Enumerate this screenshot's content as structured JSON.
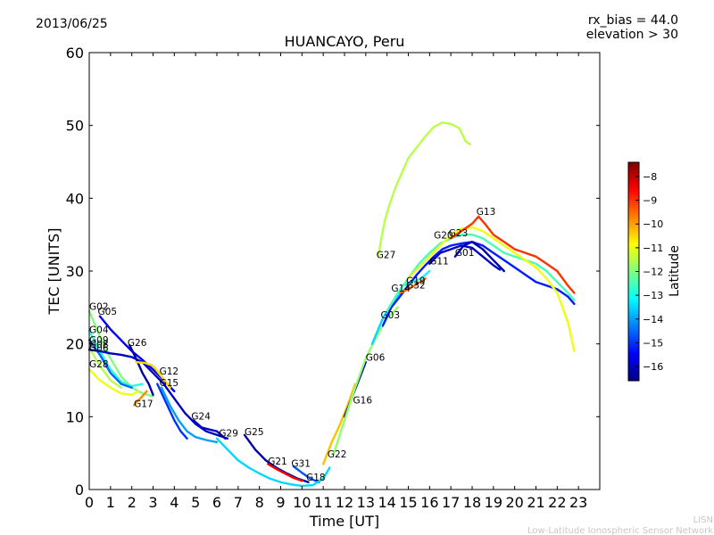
{
  "header": {
    "date": "2013/06/25",
    "rx_bias": "rx_bias = 44.0",
    "elevation": "elevation > 30"
  },
  "footer": {
    "line1": "LISN",
    "line2": "Low-Latitude Ionospheric Sensor Network"
  },
  "colorbar": {
    "label": "Latitude",
    "ticks": [
      "−8",
      "−9",
      "−10",
      "−11",
      "−12",
      "−13",
      "−14",
      "−15",
      "−16"
    ],
    "range": [
      -16.6,
      -7.4
    ],
    "colors": [
      "#00007f",
      "#0000ff",
      "#007fff",
      "#00ffff",
      "#7fff7f",
      "#ffff00",
      "#ff7f00",
      "#ff0000",
      "#7f0000"
    ]
  },
  "chart_data": {
    "type": "line",
    "title": "HUANCAYO, Peru",
    "xlabel": "Time [UT]",
    "ylabel": "TEC [UNITS]",
    "xlim": [
      0,
      24
    ],
    "ylim": [
      0,
      60
    ],
    "xticks": [
      "0",
      "1",
      "2",
      "3",
      "4",
      "5",
      "6",
      "7",
      "8",
      "9",
      "10",
      "11",
      "12",
      "13",
      "14",
      "15",
      "16",
      "17",
      "18",
      "19",
      "20",
      "21",
      "22",
      "23"
    ],
    "yticks": [
      "0",
      "10",
      "20",
      "30",
      "40",
      "50",
      "60"
    ],
    "grid": false,
    "series": [
      {
        "name": "G02",
        "lat": -12.0,
        "label_at": [
          0.0,
          24.7
        ],
        "points": [
          [
            0.0,
            24.5
          ],
          [
            0.5,
            21.0
          ],
          [
            1.0,
            18.0
          ],
          [
            1.5,
            15.5
          ],
          [
            2.0,
            14.0
          ],
          [
            2.5,
            13.2
          ],
          [
            3.0,
            12.8
          ]
        ]
      },
      {
        "name": "G05",
        "lat": -15.5,
        "label_at": [
          0.4,
          24.0
        ],
        "points": [
          [
            0.5,
            23.8
          ],
          [
            1.0,
            22.0
          ],
          [
            1.5,
            20.5
          ],
          [
            2.0,
            19.0
          ],
          [
            2.5,
            17.8
          ],
          [
            3.0,
            16.5
          ],
          [
            3.5,
            15.0
          ],
          [
            4.0,
            13.5
          ]
        ]
      },
      {
        "name": "G04",
        "lat": -12.8,
        "label_at": [
          0.0,
          21.5
        ],
        "points": [
          [
            0.0,
            21.8
          ],
          [
            0.5,
            19.0
          ],
          [
            1.0,
            16.5
          ],
          [
            1.5,
            14.8
          ],
          [
            2.0,
            14.2
          ],
          [
            2.5,
            14.5
          ]
        ]
      },
      {
        "name": "G09",
        "lat": -14.5,
        "label_at": [
          0.0,
          20.1
        ],
        "points": [
          [
            0.0,
            20.5
          ],
          [
            0.5,
            18.5
          ],
          [
            1.0,
            16.0
          ],
          [
            1.5,
            14.5
          ],
          [
            2.0,
            14.0
          ]
        ]
      },
      {
        "name": "G08",
        "lat": -11.5,
        "label_at": [
          0.0,
          19.5
        ],
        "points": [
          [
            0.0,
            19.5
          ],
          [
            0.5,
            17.0
          ],
          [
            1.0,
            15.0
          ],
          [
            1.5,
            14.0
          ]
        ]
      },
      {
        "name": "G06",
        "lat": -16.0,
        "label_at": [
          0.0,
          19.0
        ],
        "points": [
          [
            0.0,
            19.2
          ],
          [
            0.5,
            19.0
          ],
          [
            1.0,
            18.7
          ],
          [
            1.5,
            18.5
          ],
          [
            2.0,
            18.2
          ],
          [
            2.5,
            17.5
          ],
          [
            3.0,
            16.0
          ],
          [
            3.5,
            14.5
          ],
          [
            4.0,
            12.5
          ],
          [
            4.5,
            10.5
          ],
          [
            5.0,
            9.0
          ],
          [
            5.5,
            8.0
          ],
          [
            6.0,
            7.5
          ],
          [
            6.5,
            7.0
          ]
        ]
      },
      {
        "name": "G28",
        "lat": -11.0,
        "label_at": [
          0.0,
          16.8
        ],
        "points": [
          [
            0.0,
            16.5
          ],
          [
            0.5,
            15.0
          ],
          [
            1.0,
            14.0
          ],
          [
            1.5,
            13.2
          ],
          [
            2.0,
            13.0
          ],
          [
            2.3,
            13.5
          ]
        ]
      },
      {
        "name": "G26",
        "lat": -16.3,
        "label_at": [
          1.8,
          19.7
        ],
        "points": [
          [
            1.9,
            19.8
          ],
          [
            2.2,
            18.0
          ],
          [
            2.5,
            16.0
          ],
          [
            2.8,
            14.5
          ],
          [
            3.0,
            13.0
          ]
        ]
      },
      {
        "name": "G12",
        "lat": -10.5,
        "label_at": [
          3.3,
          15.8
        ],
        "points": [
          [
            2.2,
            17.5
          ],
          [
            2.6,
            17.4
          ],
          [
            3.0,
            17.0
          ],
          [
            3.4,
            15.5
          ],
          [
            3.8,
            14.0
          ]
        ]
      },
      {
        "name": "G15",
        "lat": -14.0,
        "label_at": [
          3.3,
          14.2
        ],
        "points": [
          [
            3.4,
            14.0
          ],
          [
            3.8,
            11.5
          ],
          [
            4.2,
            9.5
          ],
          [
            4.6,
            8.0
          ],
          [
            5.0,
            7.2
          ],
          [
            5.5,
            6.8
          ],
          [
            6.0,
            6.5
          ]
        ]
      },
      {
        "name": "G17",
        "lat": -9.8,
        "label_at": [
          2.1,
          11.3
        ],
        "points": [
          [
            2.1,
            11.6
          ],
          [
            2.4,
            12.5
          ],
          [
            2.7,
            13.5
          ]
        ]
      },
      {
        "name": "G24",
        "lat": -15.0,
        "label_at": [
          4.8,
          9.6
        ],
        "points": [
          [
            3.2,
            14.5
          ],
          [
            3.6,
            12.0
          ],
          [
            4.0,
            9.5
          ],
          [
            4.3,
            8.0
          ],
          [
            4.6,
            7.0
          ]
        ]
      },
      {
        "name": "G29",
        "lat": -16.0,
        "label_at": [
          6.1,
          7.3
        ],
        "points": [
          [
            4.9,
            9.5
          ],
          [
            5.3,
            8.5
          ],
          [
            5.7,
            8.2
          ],
          [
            6.0,
            8.0
          ],
          [
            6.4,
            7.0
          ]
        ]
      },
      {
        "name": "G25",
        "lat": -16.2,
        "label_at": [
          7.3,
          7.5
        ],
        "points": [
          [
            7.3,
            7.5
          ],
          [
            7.8,
            5.5
          ],
          [
            8.3,
            4.0
          ],
          [
            8.8,
            3.0
          ],
          [
            9.3,
            2.2
          ],
          [
            9.8,
            1.5
          ],
          [
            10.3,
            1.0
          ]
        ]
      },
      {
        "name": "G21",
        "lat": -8.5,
        "label_at": [
          8.4,
          3.4
        ],
        "points": [
          [
            8.4,
            3.5
          ],
          [
            8.8,
            2.8
          ],
          [
            9.2,
            2.2
          ],
          [
            9.6,
            1.6
          ],
          [
            10.0,
            1.2
          ]
        ]
      },
      {
        "name": "G31",
        "lat": -14.7,
        "label_at": [
          9.5,
          3.1
        ],
        "points": [
          [
            9.6,
            3.2
          ],
          [
            10.0,
            2.3
          ],
          [
            10.4,
            1.5
          ],
          [
            10.8,
            1.0
          ]
        ]
      },
      {
        "name": "G18",
        "lat": -13.5,
        "label_at": [
          10.2,
          1.2
        ],
        "points": [
          [
            6.0,
            7.0
          ],
          [
            6.5,
            5.5
          ],
          [
            7.0,
            4.0
          ],
          [
            7.5,
            3.0
          ],
          [
            8.0,
            2.2
          ],
          [
            8.5,
            1.5
          ],
          [
            9.0,
            1.0
          ],
          [
            9.5,
            0.7
          ],
          [
            10.0,
            0.5
          ],
          [
            10.5,
            0.6
          ],
          [
            11.0,
            1.5
          ],
          [
            11.3,
            3.0
          ]
        ]
      },
      {
        "name": "G22",
        "lat": -10.3,
        "label_at": [
          11.2,
          4.4
        ],
        "points": [
          [
            11.0,
            3.5
          ],
          [
            11.4,
            6.5
          ],
          [
            11.8,
            9.0
          ],
          [
            12.2,
            12.0
          ],
          [
            12.5,
            14.5
          ]
        ]
      },
      {
        "name": "G16",
        "lat": -16.0,
        "label_at": [
          12.4,
          11.8
        ],
        "points": [
          [
            12.0,
            10.0
          ],
          [
            12.4,
            13.0
          ],
          [
            12.8,
            16.0
          ],
          [
            13.0,
            17.5
          ]
        ]
      },
      {
        "name": "G06b",
        "lat": -11.8,
        "label_at": [
          13.0,
          17.7
        ],
        "points": [
          [
            11.5,
            5.0
          ],
          [
            12.0,
            9.5
          ],
          [
            12.5,
            14.0
          ],
          [
            13.0,
            18.0
          ],
          [
            13.5,
            21.0
          ],
          [
            14.0,
            23.5
          ],
          [
            14.5,
            25.0
          ]
        ]
      },
      {
        "name": "G03",
        "lat": -13.5,
        "label_at": [
          13.7,
          23.5
        ],
        "points": [
          [
            13.3,
            20.0
          ],
          [
            13.8,
            23.5
          ],
          [
            14.2,
            25.5
          ],
          [
            14.6,
            26.8
          ],
          [
            15.0,
            28.0
          ]
        ]
      },
      {
        "name": "G14",
        "lat": -15.2,
        "label_at": [
          14.2,
          27.2
        ],
        "points": [
          [
            13.8,
            22.5
          ],
          [
            14.2,
            25.0
          ],
          [
            14.6,
            26.5
          ],
          [
            15.0,
            28.0
          ],
          [
            15.4,
            29.5
          ],
          [
            15.8,
            30.8
          ],
          [
            16.2,
            32.0
          ],
          [
            16.6,
            33.0
          ],
          [
            17.0,
            33.5
          ],
          [
            17.5,
            33.8
          ],
          [
            18.0,
            34.0
          ],
          [
            18.5,
            33.5
          ],
          [
            19.0,
            32.5
          ],
          [
            19.5,
            31.5
          ],
          [
            20.0,
            30.5
          ],
          [
            20.5,
            29.5
          ],
          [
            21.0,
            28.5
          ],
          [
            21.5,
            28.0
          ],
          [
            22.0,
            27.5
          ],
          [
            22.5,
            26.5
          ],
          [
            22.8,
            25.5
          ]
        ]
      },
      {
        "name": "G19",
        "lat": -13.0,
        "label_at": [
          14.9,
          28.2
        ],
        "points": [
          [
            14.8,
            28.0
          ],
          [
            15.2,
            28.5
          ],
          [
            15.6,
            29.0
          ],
          [
            16.0,
            30.0
          ]
        ]
      },
      {
        "name": "G32",
        "lat": -9.5,
        "label_at": [
          14.9,
          27.6
        ],
        "points": [
          [
            14.6,
            27.0
          ],
          [
            15.0,
            27.5
          ],
          [
            15.4,
            28.2
          ],
          [
            15.8,
            29.0
          ]
        ]
      },
      {
        "name": "G11",
        "lat": -16.0,
        "label_at": [
          16.0,
          30.9
        ],
        "points": [
          [
            16.0,
            31.0
          ],
          [
            16.5,
            32.5
          ],
          [
            17.0,
            33.0
          ],
          [
            17.5,
            33.5
          ],
          [
            18.0,
            33.2
          ],
          [
            18.5,
            32.0
          ],
          [
            19.0,
            30.8
          ],
          [
            19.3,
            30.2
          ]
        ]
      },
      {
        "name": "G01",
        "lat": -16.2,
        "label_at": [
          17.2,
          32.1
        ],
        "points": [
          [
            17.2,
            32.0
          ],
          [
            17.6,
            33.5
          ],
          [
            18.0,
            34.0
          ],
          [
            18.5,
            33.0
          ],
          [
            19.0,
            31.5
          ],
          [
            19.5,
            30.0
          ]
        ]
      },
      {
        "name": "G20",
        "lat": -12.5,
        "label_at": [
          16.2,
          34.5
        ],
        "points": [
          [
            14.0,
            24.5
          ],
          [
            14.5,
            27.0
          ],
          [
            15.0,
            29.0
          ],
          [
            15.5,
            31.0
          ],
          [
            16.0,
            32.5
          ],
          [
            16.5,
            33.8
          ],
          [
            17.0,
            34.5
          ],
          [
            17.5,
            35.0
          ],
          [
            18.0,
            35.0
          ],
          [
            18.5,
            34.5
          ],
          [
            19.0,
            33.5
          ],
          [
            19.5,
            32.5
          ],
          [
            20.0,
            32.0
          ],
          [
            20.5,
            31.5
          ],
          [
            21.0,
            31.0
          ],
          [
            21.5,
            30.0
          ],
          [
            22.0,
            28.5
          ],
          [
            22.5,
            27.0
          ],
          [
            22.8,
            26.0
          ]
        ]
      },
      {
        "name": "G23",
        "lat": -11.0,
        "label_at": [
          16.9,
          34.8
        ],
        "points": [
          [
            15.0,
            29.0
          ],
          [
            15.5,
            30.5
          ],
          [
            16.0,
            32.0
          ],
          [
            16.5,
            33.5
          ],
          [
            17.0,
            35.0
          ],
          [
            17.5,
            35.8
          ],
          [
            18.0,
            36.0
          ],
          [
            18.5,
            35.5
          ],
          [
            19.0,
            34.5
          ],
          [
            19.5,
            33.5
          ],
          [
            20.0,
            32.5
          ],
          [
            20.5,
            31.5
          ],
          [
            21.0,
            30.5
          ],
          [
            21.5,
            29.0
          ],
          [
            22.0,
            27.0
          ],
          [
            22.5,
            23.0
          ],
          [
            22.8,
            19.0
          ]
        ]
      },
      {
        "name": "G13",
        "lat": -9.0,
        "label_at": [
          18.2,
          37.7
        ],
        "points": [
          [
            17.0,
            34.5
          ],
          [
            17.5,
            35.5
          ],
          [
            18.0,
            36.5
          ],
          [
            18.3,
            37.5
          ],
          [
            18.6,
            36.5
          ],
          [
            19.0,
            35.0
          ],
          [
            19.5,
            34.0
          ],
          [
            20.0,
            33.0
          ],
          [
            20.5,
            32.5
          ],
          [
            21.0,
            32.0
          ],
          [
            21.5,
            31.0
          ],
          [
            22.0,
            30.0
          ],
          [
            22.5,
            28.0
          ],
          [
            22.8,
            27.0
          ]
        ]
      },
      {
        "name": "G27",
        "lat": -11.5,
        "label_at": [
          13.5,
          31.8
        ],
        "points": [
          [
            13.6,
            32.0
          ],
          [
            13.7,
            34.0
          ],
          [
            13.9,
            37.0
          ],
          [
            14.1,
            39.0
          ],
          [
            14.4,
            41.5
          ],
          [
            14.7,
            43.5
          ],
          [
            15.0,
            45.5
          ],
          [
            15.4,
            47.0
          ],
          [
            15.8,
            48.5
          ],
          [
            16.2,
            49.8
          ],
          [
            16.6,
            50.4
          ],
          [
            17.0,
            50.2
          ],
          [
            17.4,
            49.6
          ],
          [
            17.7,
            47.8
          ],
          [
            17.9,
            47.4
          ]
        ]
      }
    ]
  }
}
